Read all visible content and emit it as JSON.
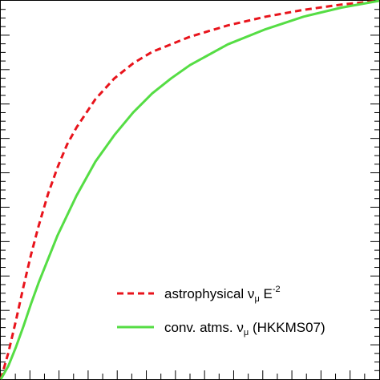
{
  "chart_data": {
    "type": "line",
    "title": "",
    "xlabel": "",
    "ylabel": "",
    "xlim": [
      0,
      1
    ],
    "ylim": [
      0,
      1
    ],
    "grid": false,
    "legend_position": "bottom-right",
    "series": [
      {
        "name": "astrophysical ν_μ E^-2",
        "legend_main": "astrophysical ν",
        "legend_sub": "μ",
        "legend_tail": " E",
        "legend_sup": "-2",
        "color": "#e8141c",
        "dash": "dashed",
        "x": [
          0.0,
          0.02,
          0.04,
          0.06,
          0.08,
          0.1,
          0.125,
          0.15,
          0.175,
          0.2,
          0.25,
          0.3,
          0.35,
          0.4,
          0.5,
          0.6,
          0.7,
          0.8,
          0.9,
          1.0
        ],
        "y": [
          0.0,
          0.07,
          0.155,
          0.245,
          0.33,
          0.405,
          0.49,
          0.56,
          0.62,
          0.665,
          0.74,
          0.795,
          0.835,
          0.865,
          0.905,
          0.935,
          0.958,
          0.976,
          0.99,
          1.0
        ]
      },
      {
        "name": "conv. atms. ν_μ (HKKMS07)",
        "legend_main": "conv. atms. ν",
        "legend_sub": "μ",
        "legend_tail": " (HKKMS07)",
        "legend_sup": "",
        "color": "#55dd44",
        "dash": "solid",
        "x": [
          0.0,
          0.02,
          0.04,
          0.06,
          0.08,
          0.1,
          0.15,
          0.2,
          0.25,
          0.3,
          0.35,
          0.4,
          0.45,
          0.5,
          0.6,
          0.7,
          0.8,
          0.9,
          1.0
        ],
        "y": [
          0.0,
          0.035,
          0.085,
          0.14,
          0.2,
          0.255,
          0.38,
          0.485,
          0.575,
          0.645,
          0.705,
          0.755,
          0.795,
          0.83,
          0.885,
          0.925,
          0.958,
          0.982,
          1.0
        ]
      }
    ]
  }
}
